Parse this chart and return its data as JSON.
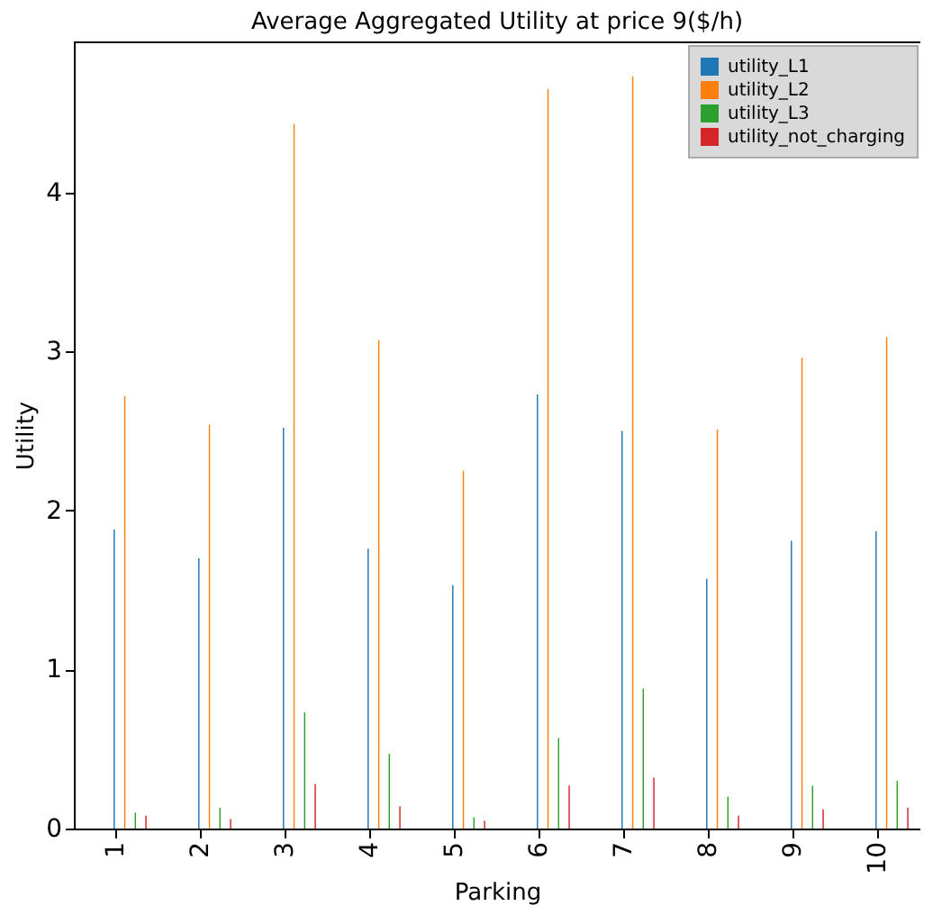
{
  "chart_data": {
    "type": "bar",
    "title": "Average Aggregated Utility at price 9($/h)",
    "xlabel": "Parking",
    "ylabel": "Utility",
    "categories": [
      "1",
      "2",
      "3",
      "4",
      "5",
      "6",
      "7",
      "8",
      "9",
      "10"
    ],
    "series": [
      {
        "name": "utility_L1",
        "color": "#1f77b4",
        "values": [
          1.88,
          1.7,
          2.52,
          1.76,
          1.53,
          2.73,
          2.5,
          1.57,
          1.81,
          1.87
        ]
      },
      {
        "name": "utility_L2",
        "color": "#ff7f0e",
        "values": [
          2.72,
          2.54,
          4.43,
          3.07,
          2.25,
          4.65,
          4.73,
          2.51,
          2.96,
          3.09
        ]
      },
      {
        "name": "utility_L3",
        "color": "#2ca02c",
        "values": [
          0.1,
          0.13,
          0.73,
          0.47,
          0.07,
          0.57,
          0.88,
          0.2,
          0.27,
          0.3
        ]
      },
      {
        "name": "utility_not_charging",
        "color": "#d62728",
        "values": [
          0.08,
          0.06,
          0.28,
          0.14,
          0.05,
          0.27,
          0.32,
          0.08,
          0.12,
          0.13
        ]
      }
    ],
    "ylim": [
      0,
      4.95
    ],
    "yticks": [
      0,
      1,
      2,
      3,
      4
    ],
    "legend": "top right"
  }
}
